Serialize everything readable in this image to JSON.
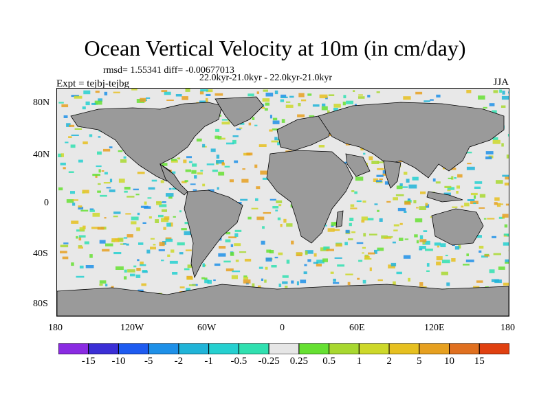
{
  "title": "Ocean Vertical Velocity at 10m (in cm/day)",
  "stats": "rmsd= 1.55341 diff= -0.00677013",
  "period": "22.0kyr-21.0kyr - 22.0kyr-21.0kyr",
  "experiment": "Expt = tejbj-tejbg",
  "season": "JJA",
  "lat_labels": [
    "80N",
    "40N",
    "0",
    "40S",
    "80S"
  ],
  "lon_labels": [
    "180",
    "120W",
    "60W",
    "0",
    "60E",
    "120E",
    "180"
  ],
  "colorbar": {
    "colors": [
      "#8a2be2",
      "#3b2fd6",
      "#1e5bf0",
      "#1e90e8",
      "#20b4d8",
      "#25d0d0",
      "#30e0b0",
      "#e6e6e6",
      "#66e032",
      "#a8d830",
      "#cdd82a",
      "#e6c020",
      "#e6a020",
      "#e07020",
      "#e04010"
    ],
    "labels": [
      "-15",
      "-10",
      "-5",
      "-2",
      "-1",
      "-0.5",
      "-0.25",
      "0.25",
      "0.5",
      "1",
      "2",
      "5",
      "10",
      "15"
    ]
  },
  "land_color": "#9a9a9a"
}
